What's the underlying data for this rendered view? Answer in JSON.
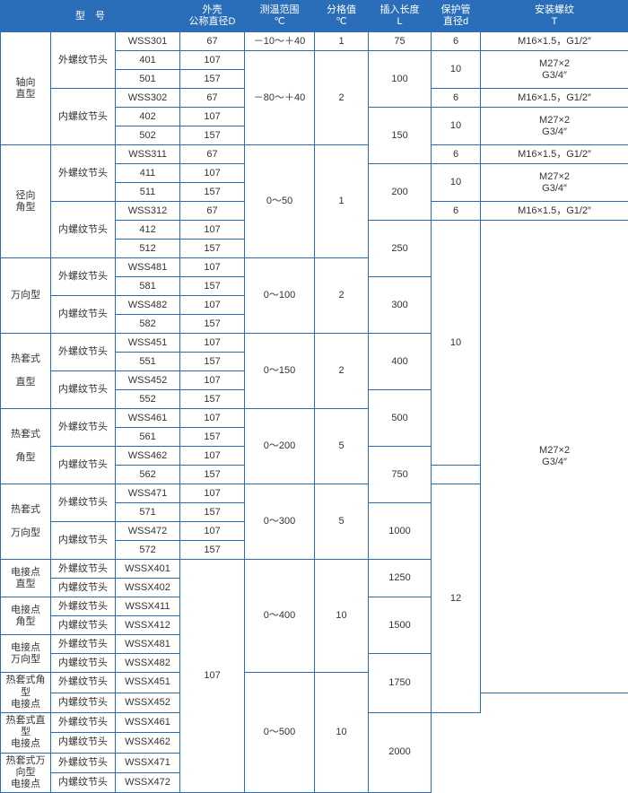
{
  "header": {
    "model": "型　号",
    "shell": "外壳\n公称直径D",
    "temp": "测温范围\n℃",
    "div": "分格值\n℃",
    "len": "插入长度\nL",
    "tube": "保护管\n直径d",
    "thread": "安装螺纹\nT"
  },
  "joint": {
    "ext": "外螺纹节头",
    "int": "内螺纹节头"
  },
  "type": {
    "axial": "轴向\n直型",
    "radial": "径向\n角型",
    "univ": "万向型",
    "hot_str": "热套式\n\n直型",
    "hot_ang": "热套式\n\n角型",
    "hot_univ": "热套式\n\n万向型",
    "elec_str": "电接点\n直型",
    "elec_ang": "电接点\n角型",
    "elec_univ": "电接点\n万向型",
    "hot_ang_elec": "热套式角型\n电接点",
    "hot_str_elec": "热套式直型\n电接点",
    "hot_univ_elec": "热套式万向型\n电接点"
  },
  "m": {
    "w301": "WSS301",
    "w401": "401",
    "w501": "501",
    "w302": "WSS302",
    "w402": "402",
    "w502": "502",
    "w311": "WSS311",
    "w411": "411",
    "w511": "511",
    "w312": "WSS312",
    "w412": "412",
    "w512": "512",
    "w481": "WSS481",
    "w581": "581",
    "w482": "WSS482",
    "w582": "582",
    "w451": "WSS451",
    "w551": "551",
    "w452": "WSS452",
    "w552": "552",
    "w461": "WSS461",
    "w561": "561",
    "w462": "WSS462",
    "w562": "562",
    "w471": "WSS471",
    "w571": "571",
    "w472": "WSS472",
    "w572": "572",
    "x401": "WSSX401",
    "x402": "WSSX402",
    "x411": "WSSX411",
    "x412": "WSSX412",
    "x481": "WSSX481",
    "x482": "WSSX482",
    "x451": "WSSX451",
    "x452": "WSSX452",
    "x461": "WSSX461",
    "x462": "WSSX462",
    "x471": "WSSX471",
    "x472": "WSSX472"
  },
  "d": {
    "d67": "67",
    "d107": "107",
    "d157": "157"
  },
  "tr": {
    "r1": "－10～＋40",
    "r2": "－80～＋40",
    "r3": "0～50",
    "r4": "0～100",
    "r5": "0～150",
    "r6": "0～200",
    "r7": "0～300",
    "r8": "0～400",
    "r9": "0～500"
  },
  "dv": {
    "v1": "1",
    "v2": "2",
    "v5": "5",
    "v10": "10"
  },
  "len": {
    "l75": "75",
    "l100": "100",
    "l150": "150",
    "l200": "200",
    "l250": "250",
    "l300": "300",
    "l400": "400",
    "l500": "500",
    "l750": "750",
    "l1000": "1000",
    "l1250": "1250",
    "l1500": "1500",
    "l1750": "1750",
    "l2000": "2000"
  },
  "tube": {
    "t6": "6",
    "t10": "10",
    "t12": "12"
  },
  "thr": {
    "m16": "M16×1.5，G1/2″",
    "m27": "M27×2\nG3/4″"
  }
}
